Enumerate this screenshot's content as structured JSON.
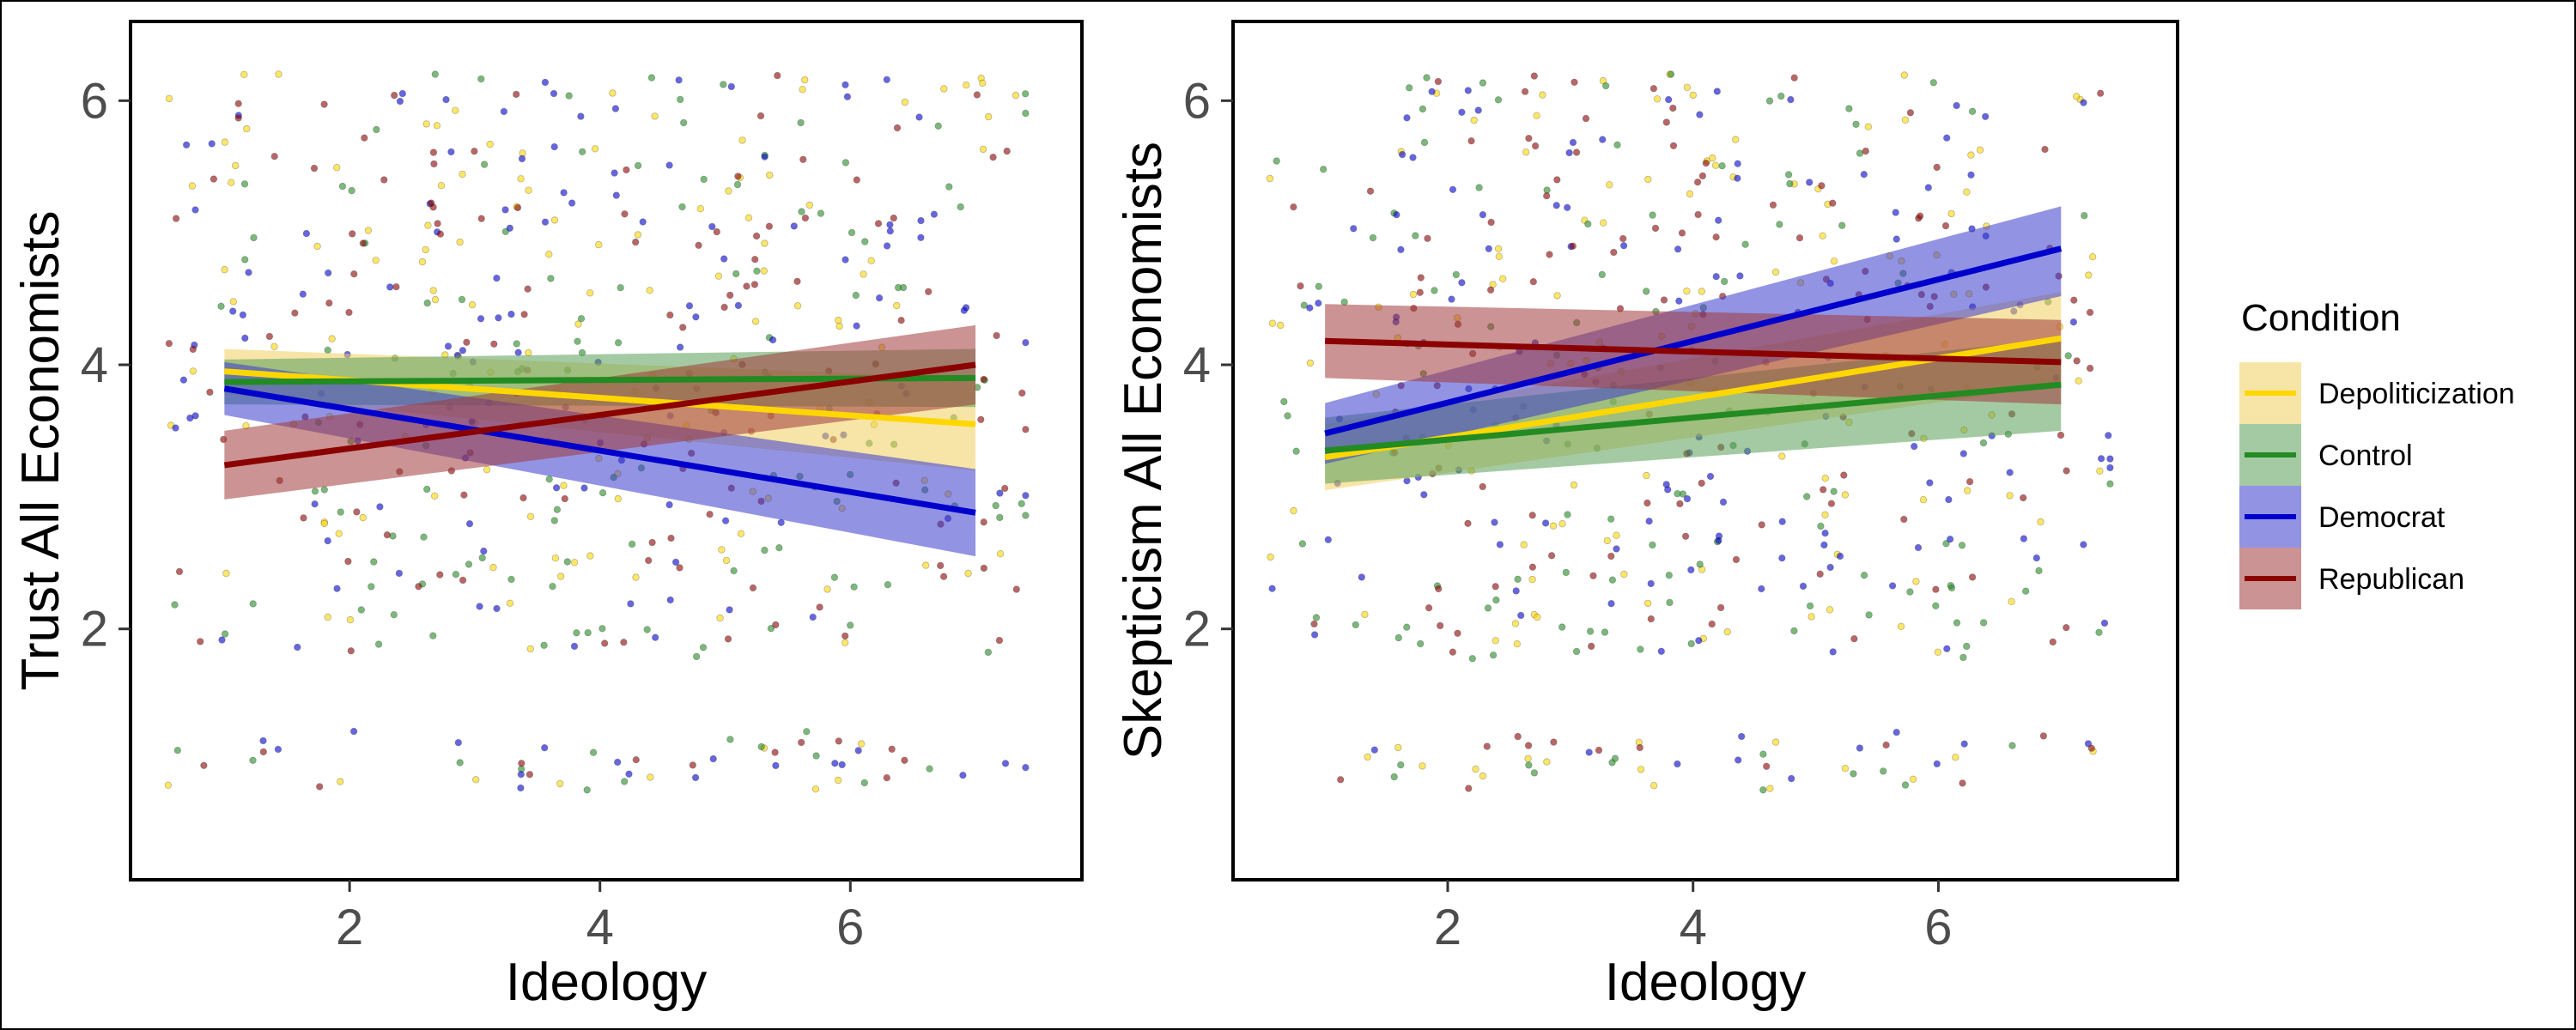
{
  "chart_data": [
    {
      "type": "scatter",
      "xlabel": "Ideology",
      "ylabel": "Trust All Economists",
      "xlim": [
        0.25,
        7.85
      ],
      "ylim": [
        0.1,
        6.6
      ],
      "xticks": [
        2,
        4,
        6
      ],
      "yticks": [
        2,
        4,
        6
      ],
      "grid": false,
      "series": [
        {
          "name": "Depoliticization",
          "color": "#FFD700",
          "band_color": "#F0D060",
          "fit": {
            "x": [
              1,
              7
            ],
            "y": [
              3.95,
              3.55
            ]
          },
          "ci_low": [
            3.78,
            3.2
          ],
          "ci_high": [
            4.12,
            3.9
          ]
        },
        {
          "name": "Control",
          "color": "#228B22",
          "band_color": "#5A9E5A",
          "fit": {
            "x": [
              1,
              7
            ],
            "y": [
              3.87,
              3.9
            ]
          },
          "ci_low": [
            3.7,
            3.68
          ],
          "ci_high": [
            4.04,
            4.12
          ]
        },
        {
          "name": "Democrat",
          "color": "#0000CD",
          "band_color": "#3A3ACD",
          "fit": {
            "x": [
              1,
              7
            ],
            "y": [
              3.82,
              2.88
            ]
          },
          "ci_low": [
            3.62,
            2.55
          ],
          "ci_high": [
            4.02,
            3.21
          ]
        },
        {
          "name": "Republican",
          "color": "#8B0000",
          "band_color": "#A03A3A",
          "fit": {
            "x": [
              1,
              7
            ],
            "y": [
              3.24,
              4.0
            ]
          },
          "ci_low": [
            2.98,
            3.7
          ],
          "ci_high": [
            3.5,
            4.3
          ]
        }
      ]
    },
    {
      "type": "scatter",
      "xlabel": "Ideology",
      "ylabel": "Skepticism All Economists",
      "xlim": [
        0.25,
        7.95
      ],
      "ylim": [
        0.1,
        6.6
      ],
      "xticks": [
        2,
        4,
        6
      ],
      "yticks": [
        2,
        4,
        6
      ],
      "grid": false,
      "series": [
        {
          "name": "Depoliticization",
          "color": "#FFD700",
          "band_color": "#F0D060",
          "fit": {
            "x": [
              1,
              7
            ],
            "y": [
              3.3,
              4.2
            ]
          },
          "ci_low": [
            3.05,
            3.85
          ],
          "ci_high": [
            3.55,
            4.55
          ]
        },
        {
          "name": "Control",
          "color": "#228B22",
          "band_color": "#5A9E5A",
          "fit": {
            "x": [
              1,
              7
            ],
            "y": [
              3.35,
              3.85
            ]
          },
          "ci_low": [
            3.1,
            3.5
          ],
          "ci_high": [
            3.6,
            4.2
          ]
        },
        {
          "name": "Democrat",
          "color": "#0000CD",
          "band_color": "#3A3ACD",
          "fit": {
            "x": [
              1,
              7
            ],
            "y": [
              3.48,
              4.88
            ]
          },
          "ci_low": [
            3.25,
            4.52
          ],
          "ci_high": [
            3.71,
            5.2
          ]
        },
        {
          "name": "Republican",
          "color": "#8B0000",
          "band_color": "#A03A3A",
          "fit": {
            "x": [
              1,
              7
            ],
            "y": [
              4.18,
              4.02
            ]
          },
          "ci_low": [
            3.9,
            3.7
          ],
          "ci_high": [
            4.46,
            4.34
          ]
        }
      ]
    }
  ],
  "legend": {
    "title": "Condition",
    "position": "right",
    "items": [
      {
        "label": "Depoliticization",
        "color": "#FFD700",
        "band_color": "#F0D060"
      },
      {
        "label": "Control",
        "color": "#228B22",
        "band_color": "#5A9E5A"
      },
      {
        "label": "Democrat",
        "color": "#0000CD",
        "band_color": "#3A3ACD"
      },
      {
        "label": "Republican",
        "color": "#8B0000",
        "band_color": "#A03A3A"
      }
    ]
  }
}
